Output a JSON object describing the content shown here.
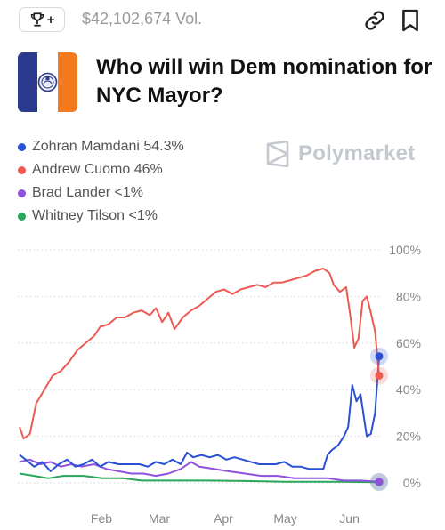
{
  "header": {
    "trophy_icon": "trophy-icon",
    "trophy_plus": "+",
    "volume": "$42,102,674 Vol.",
    "link_icon": "link-icon",
    "bookmark_icon": "bookmark-icon"
  },
  "market": {
    "image": "nyc-flag-seal-image",
    "title": "Who will win Dem nomination for NYC Mayor?"
  },
  "legend": [
    {
      "label": "Zohran Mamdani 54.3%",
      "color": "#2a50d4"
    },
    {
      "label": "Andrew Cuomo 46%",
      "color": "#ec5a52"
    },
    {
      "label": "Brad Lander <1%",
      "color": "#8e52de"
    },
    {
      "label": "Whitney Tilson <1%",
      "color": "#2aa65a"
    }
  ],
  "watermark": "Polymarket",
  "chart_data": {
    "type": "line",
    "x_unit": "date",
    "x_range": [
      "2025-01-01",
      "2025-06-24"
    ],
    "ylim": [
      0,
      100
    ],
    "y_ticks": [
      "0%",
      "20%",
      "40%",
      "60%",
      "80%",
      "100%"
    ],
    "x_ticks": [
      {
        "label": "Feb",
        "date": "2025-02-01"
      },
      {
        "label": "Mar",
        "date": "2025-03-01"
      },
      {
        "label": "Apr",
        "date": "2025-04-01"
      },
      {
        "label": "May",
        "date": "2025-05-01"
      },
      {
        "label": "Jun",
        "date": "2025-06-01"
      }
    ],
    "grid": "horizontal dotted",
    "series": [
      {
        "name": "Andrew Cuomo",
        "color": "#ec5a52",
        "points": [
          [
            "2025-01-01",
            24
          ],
          [
            "2025-01-03",
            19
          ],
          [
            "2025-01-06",
            21
          ],
          [
            "2025-01-09",
            34
          ],
          [
            "2025-01-13",
            40
          ],
          [
            "2025-01-17",
            46
          ],
          [
            "2025-01-21",
            48
          ],
          [
            "2025-01-25",
            52
          ],
          [
            "2025-01-29",
            57
          ],
          [
            "2025-02-02",
            60
          ],
          [
            "2025-02-06",
            63
          ],
          [
            "2025-02-09",
            67
          ],
          [
            "2025-02-13",
            68
          ],
          [
            "2025-02-17",
            71
          ],
          [
            "2025-02-21",
            71
          ],
          [
            "2025-02-25",
            73
          ],
          [
            "2025-03-01",
            74
          ],
          [
            "2025-03-05",
            72
          ],
          [
            "2025-03-08",
            75
          ],
          [
            "2025-03-11",
            69
          ],
          [
            "2025-03-14",
            73
          ],
          [
            "2025-03-17",
            66
          ],
          [
            "2025-03-21",
            71
          ],
          [
            "2025-03-25",
            74
          ],
          [
            "2025-03-29",
            76
          ],
          [
            "2025-04-02",
            79
          ],
          [
            "2025-04-06",
            82
          ],
          [
            "2025-04-10",
            83
          ],
          [
            "2025-04-14",
            81
          ],
          [
            "2025-04-18",
            83
          ],
          [
            "2025-04-22",
            84
          ],
          [
            "2025-04-26",
            85
          ],
          [
            "2025-04-30",
            84
          ],
          [
            "2025-05-04",
            86
          ],
          [
            "2025-05-08",
            86
          ],
          [
            "2025-05-12",
            87
          ],
          [
            "2025-05-16",
            88
          ],
          [
            "2025-05-20",
            89
          ],
          [
            "2025-05-24",
            91
          ],
          [
            "2025-05-28",
            92
          ],
          [
            "2025-05-31",
            90
          ],
          [
            "2025-06-02",
            85
          ],
          [
            "2025-06-05",
            82
          ],
          [
            "2025-06-08",
            84
          ],
          [
            "2025-06-10",
            72
          ],
          [
            "2025-06-12",
            58
          ],
          [
            "2025-06-14",
            62
          ],
          [
            "2025-06-16",
            78
          ],
          [
            "2025-06-18",
            80
          ],
          [
            "2025-06-20",
            73
          ],
          [
            "2025-06-22",
            65
          ],
          [
            "2025-06-24",
            46
          ]
        ]
      },
      {
        "name": "Zohran Mamdani",
        "color": "#2a50d4",
        "points": [
          [
            "2025-01-01",
            12
          ],
          [
            "2025-01-04",
            10
          ],
          [
            "2025-01-08",
            7
          ],
          [
            "2025-01-12",
            9
          ],
          [
            "2025-01-16",
            5
          ],
          [
            "2025-01-20",
            8
          ],
          [
            "2025-01-24",
            10
          ],
          [
            "2025-01-28",
            7
          ],
          [
            "2025-02-01",
            8
          ],
          [
            "2025-02-05",
            10
          ],
          [
            "2025-02-09",
            7
          ],
          [
            "2025-02-13",
            9
          ],
          [
            "2025-02-18",
            8
          ],
          [
            "2025-02-23",
            8
          ],
          [
            "2025-02-28",
            8
          ],
          [
            "2025-03-04",
            7
          ],
          [
            "2025-03-08",
            9
          ],
          [
            "2025-03-12",
            8
          ],
          [
            "2025-03-16",
            10
          ],
          [
            "2025-03-20",
            8
          ],
          [
            "2025-03-23",
            13
          ],
          [
            "2025-03-26",
            11
          ],
          [
            "2025-03-30",
            12
          ],
          [
            "2025-04-03",
            11
          ],
          [
            "2025-04-07",
            12
          ],
          [
            "2025-04-11",
            10
          ],
          [
            "2025-04-15",
            11
          ],
          [
            "2025-04-19",
            10
          ],
          [
            "2025-04-23",
            9
          ],
          [
            "2025-04-27",
            8
          ],
          [
            "2025-05-01",
            8
          ],
          [
            "2025-05-05",
            8
          ],
          [
            "2025-05-09",
            9
          ],
          [
            "2025-05-13",
            7
          ],
          [
            "2025-05-17",
            7
          ],
          [
            "2025-05-21",
            6
          ],
          [
            "2025-05-25",
            6
          ],
          [
            "2025-05-28",
            6
          ],
          [
            "2025-05-30",
            12
          ],
          [
            "2025-06-01",
            14
          ],
          [
            "2025-06-04",
            16
          ],
          [
            "2025-06-07",
            20
          ],
          [
            "2025-06-09",
            24
          ],
          [
            "2025-06-11",
            42
          ],
          [
            "2025-06-13",
            35
          ],
          [
            "2025-06-15",
            38
          ],
          [
            "2025-06-17",
            26
          ],
          [
            "2025-06-18",
            20
          ],
          [
            "2025-06-20",
            21
          ],
          [
            "2025-06-22",
            30
          ],
          [
            "2025-06-24",
            54.3
          ]
        ]
      },
      {
        "name": "Brad Lander",
        "color": "#8e52de",
        "points": [
          [
            "2025-01-01",
            9
          ],
          [
            "2025-01-06",
            10
          ],
          [
            "2025-01-11",
            8
          ],
          [
            "2025-01-16",
            9
          ],
          [
            "2025-01-21",
            7
          ],
          [
            "2025-01-26",
            8
          ],
          [
            "2025-01-31",
            7
          ],
          [
            "2025-02-06",
            8
          ],
          [
            "2025-02-12",
            6
          ],
          [
            "2025-02-18",
            5
          ],
          [
            "2025-02-24",
            4
          ],
          [
            "2025-03-02",
            4
          ],
          [
            "2025-03-08",
            3
          ],
          [
            "2025-03-14",
            4
          ],
          [
            "2025-03-20",
            6
          ],
          [
            "2025-03-25",
            9
          ],
          [
            "2025-03-29",
            7
          ],
          [
            "2025-04-05",
            6
          ],
          [
            "2025-04-12",
            5
          ],
          [
            "2025-04-20",
            4
          ],
          [
            "2025-04-28",
            3
          ],
          [
            "2025-05-06",
            3
          ],
          [
            "2025-05-14",
            2
          ],
          [
            "2025-05-22",
            2
          ],
          [
            "2025-05-30",
            2
          ],
          [
            "2025-06-07",
            1
          ],
          [
            "2025-06-15",
            1
          ],
          [
            "2025-06-24",
            0.5
          ]
        ]
      },
      {
        "name": "Whitney Tilson",
        "color": "#2aa65a",
        "points": [
          [
            "2025-01-01",
            4
          ],
          [
            "2025-01-08",
            3
          ],
          [
            "2025-01-15",
            2
          ],
          [
            "2025-01-22",
            3
          ],
          [
            "2025-02-01",
            3
          ],
          [
            "2025-02-10",
            2
          ],
          [
            "2025-02-20",
            2
          ],
          [
            "2025-03-01",
            1
          ],
          [
            "2025-03-15",
            1
          ],
          [
            "2025-04-01",
            1
          ],
          [
            "2025-04-20",
            0.8
          ],
          [
            "2025-05-10",
            0.5
          ],
          [
            "2025-06-01",
            0.5
          ],
          [
            "2025-06-24",
            0.3
          ]
        ]
      }
    ]
  }
}
